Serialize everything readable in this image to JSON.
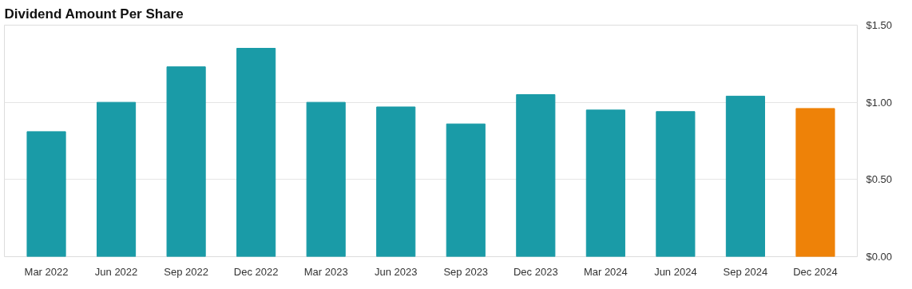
{
  "chart_data": {
    "type": "bar",
    "title": "Dividend Amount Per Share",
    "categories": [
      "Mar 2022",
      "Jun 2022",
      "Sep 2022",
      "Dec 2022",
      "Mar 2023",
      "Jun 2023",
      "Sep 2023",
      "Dec 2023",
      "Mar 2024",
      "Jun 2024",
      "Sep 2024",
      "Dec 2024"
    ],
    "values": [
      0.81,
      1.0,
      1.23,
      1.35,
      1.0,
      0.97,
      0.86,
      1.05,
      0.95,
      0.94,
      1.04,
      0.96
    ],
    "colors": [
      "#1a9ba7",
      "#1a9ba7",
      "#1a9ba7",
      "#1a9ba7",
      "#1a9ba7",
      "#1a9ba7",
      "#1a9ba7",
      "#1a9ba7",
      "#1a9ba7",
      "#1a9ba7",
      "#1a9ba7",
      "#ee8208"
    ],
    "ylim": [
      0,
      1.5
    ],
    "yticks": [
      {
        "value": 0,
        "label": "$0.00"
      },
      {
        "value": 0.5,
        "label": "$0.50"
      },
      {
        "value": 1.0,
        "label": "$1.00"
      },
      {
        "value": 1.5,
        "label": "$1.50"
      }
    ],
    "grid": "y"
  }
}
